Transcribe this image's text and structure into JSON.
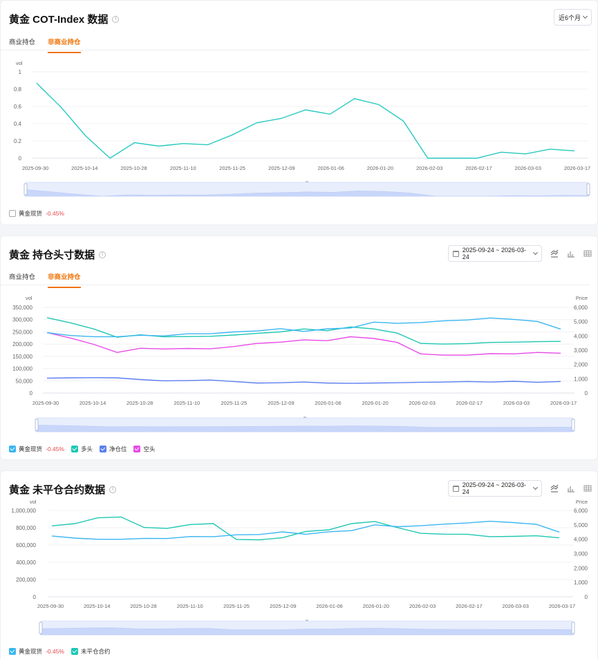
{
  "colors": {
    "accent": "#f0740a",
    "line1": "#26c9bf",
    "spot": "#3ab6f0",
    "long": "#1ec7b3",
    "net": "#5b7ef0",
    "short": "#e84ae8",
    "oi": "#1ec7b3",
    "negative": "#e5484d",
    "slider": "#dbe4fb"
  },
  "card1": {
    "title": "黄金 COT-Index 数据",
    "period_label": "近6个月",
    "tabs": [
      {
        "label": "商业持仓"
      },
      {
        "label": "非商业持仓"
      }
    ],
    "legend": [
      {
        "label": "黄金现货",
        "change": "-0.45%"
      }
    ]
  },
  "card2": {
    "title": "黄金 持仓头寸数据",
    "date_range": "2025-09-24 ~ 2026-03-24",
    "tabs": [
      {
        "label": "商业持仓"
      },
      {
        "label": "非商业持仓"
      }
    ],
    "legend": [
      {
        "label": "黄金现货",
        "change": "-0.45%"
      },
      {
        "label": "多头"
      },
      {
        "label": "净仓位"
      },
      {
        "label": "空头"
      }
    ]
  },
  "card3": {
    "title": "黄金 未平仓合约数据",
    "date_range": "2025-09-24 ~ 2026-03-24",
    "legend": [
      {
        "label": "黄金现货",
        "change": "-0.45%"
      },
      {
        "label": "未平仓合约"
      }
    ]
  },
  "chart_data": [
    {
      "type": "line",
      "title": "",
      "ylabel": "vol",
      "ylim": [
        0,
        1
      ],
      "yticks": [
        "0",
        "0.2",
        "0.4",
        "0.6",
        "0.8",
        "1"
      ],
      "xticks": [
        "2025-09-30",
        "2025-10-14",
        "2025-10-28",
        "2025-11-10",
        "2025-11-25",
        "2025-12-09",
        "2026-01-06",
        "2026-01-20",
        "2026-02-03",
        "2026-02-17",
        "2026-03-03",
        "2026-03-17"
      ],
      "series": [
        {
          "values": [
            0.87,
            0.59,
            0.26,
            0.0,
            0.18,
            0.14,
            0.17,
            0.155,
            0.27,
            0.41,
            0.46,
            0.56,
            0.51,
            0.69,
            0.62,
            0.43,
            0.0,
            0.0,
            0.0,
            0.07,
            0.05,
            0.105,
            0.085
          ]
        }
      ]
    },
    {
      "type": "line",
      "ylabel": "vol",
      "ylabel_right": "Price",
      "ylim": [
        0,
        350000
      ],
      "ylim_right": [
        0,
        6000
      ],
      "yticks": [
        "0",
        "50,000",
        "100,000",
        "150,000",
        "200,000",
        "250,000",
        "300,000",
        "350,000"
      ],
      "yticks_right": [
        "0",
        "1,000",
        "2,000",
        "3,000",
        "4,000",
        "5,000",
        "6,000"
      ],
      "xticks": [
        "2025-09-30",
        "2025-10-14",
        "2025-10-28",
        "2025-11-10",
        "2025-11-25",
        "2025-12-09",
        "2026-01-06",
        "2026-01-20",
        "2026-02-03",
        "2026-02-17",
        "2026-03-03",
        "2026-03-17"
      ],
      "series": [
        {
          "name": "多头",
          "axis": "left",
          "values": [
            308000,
            287000,
            262000,
            228000,
            238000,
            230000,
            231000,
            232000,
            237000,
            244000,
            250000,
            262000,
            255000,
            270000,
            262000,
            245000,
            203000,
            200000,
            202000,
            207000,
            208000,
            210000,
            211000
          ]
        },
        {
          "name": "净仓位",
          "axis": "left",
          "values": [
            61000,
            62000,
            63000,
            62000,
            55000,
            50000,
            51000,
            53000,
            47000,
            41000,
            42000,
            45000,
            41000,
            40000,
            41000,
            42000,
            44000,
            45000,
            47000,
            45000,
            48000,
            44000,
            47000
          ]
        },
        {
          "name": "空头",
          "axis": "left",
          "values": [
            247000,
            225000,
            199000,
            166000,
            183000,
            180000,
            182000,
            181000,
            190000,
            203000,
            208000,
            217000,
            214000,
            230000,
            223000,
            207000,
            160000,
            155000,
            155000,
            161000,
            160000,
            166000,
            163000
          ]
        },
        {
          "name": "黄金现货",
          "axis": "right",
          "values": [
            4230,
            4030,
            3950,
            3950,
            4050,
            4000,
            4150,
            4150,
            4280,
            4350,
            4510,
            4320,
            4500,
            4560,
            4970,
            4880,
            4940,
            5060,
            5120,
            5260,
            5160,
            5020,
            4480
          ]
        }
      ]
    },
    {
      "type": "line",
      "ylabel": "vol",
      "ylabel_right": "Price",
      "ylim": [
        0,
        1000000
      ],
      "ylim_right": [
        0,
        6000
      ],
      "yticks": [
        "0",
        "200,000",
        "400,000",
        "600,000",
        "800,000",
        "1,000,000"
      ],
      "yticks_right": [
        "0",
        "1,000",
        "2,000",
        "3,000",
        "4,000",
        "5,000",
        "6,000"
      ],
      "xticks": [
        "2025-09-30",
        "2025-10-14",
        "2025-10-28",
        "2025-11-10",
        "2025-11-25",
        "2025-12-09",
        "2026-01-06",
        "2026-01-20",
        "2026-02-03",
        "2026-02-17",
        "2026-03-03",
        "2026-03-17"
      ],
      "series": [
        {
          "name": "未平仓合约",
          "axis": "left",
          "values": [
            822000,
            848000,
            915000,
            925000,
            803000,
            793000,
            838000,
            848000,
            665000,
            660000,
            685000,
            757000,
            776000,
            848000,
            873000,
            800000,
            735000,
            726000,
            725000,
            697000,
            700000,
            707000,
            683000
          ]
        },
        {
          "name": "黄金现货",
          "axis": "right",
          "values": [
            4230,
            4080,
            4000,
            4000,
            4060,
            4050,
            4190,
            4180,
            4310,
            4330,
            4510,
            4350,
            4520,
            4600,
            5000,
            4870,
            4940,
            5050,
            5130,
            5250,
            5160,
            5040,
            4500
          ]
        }
      ]
    }
  ]
}
